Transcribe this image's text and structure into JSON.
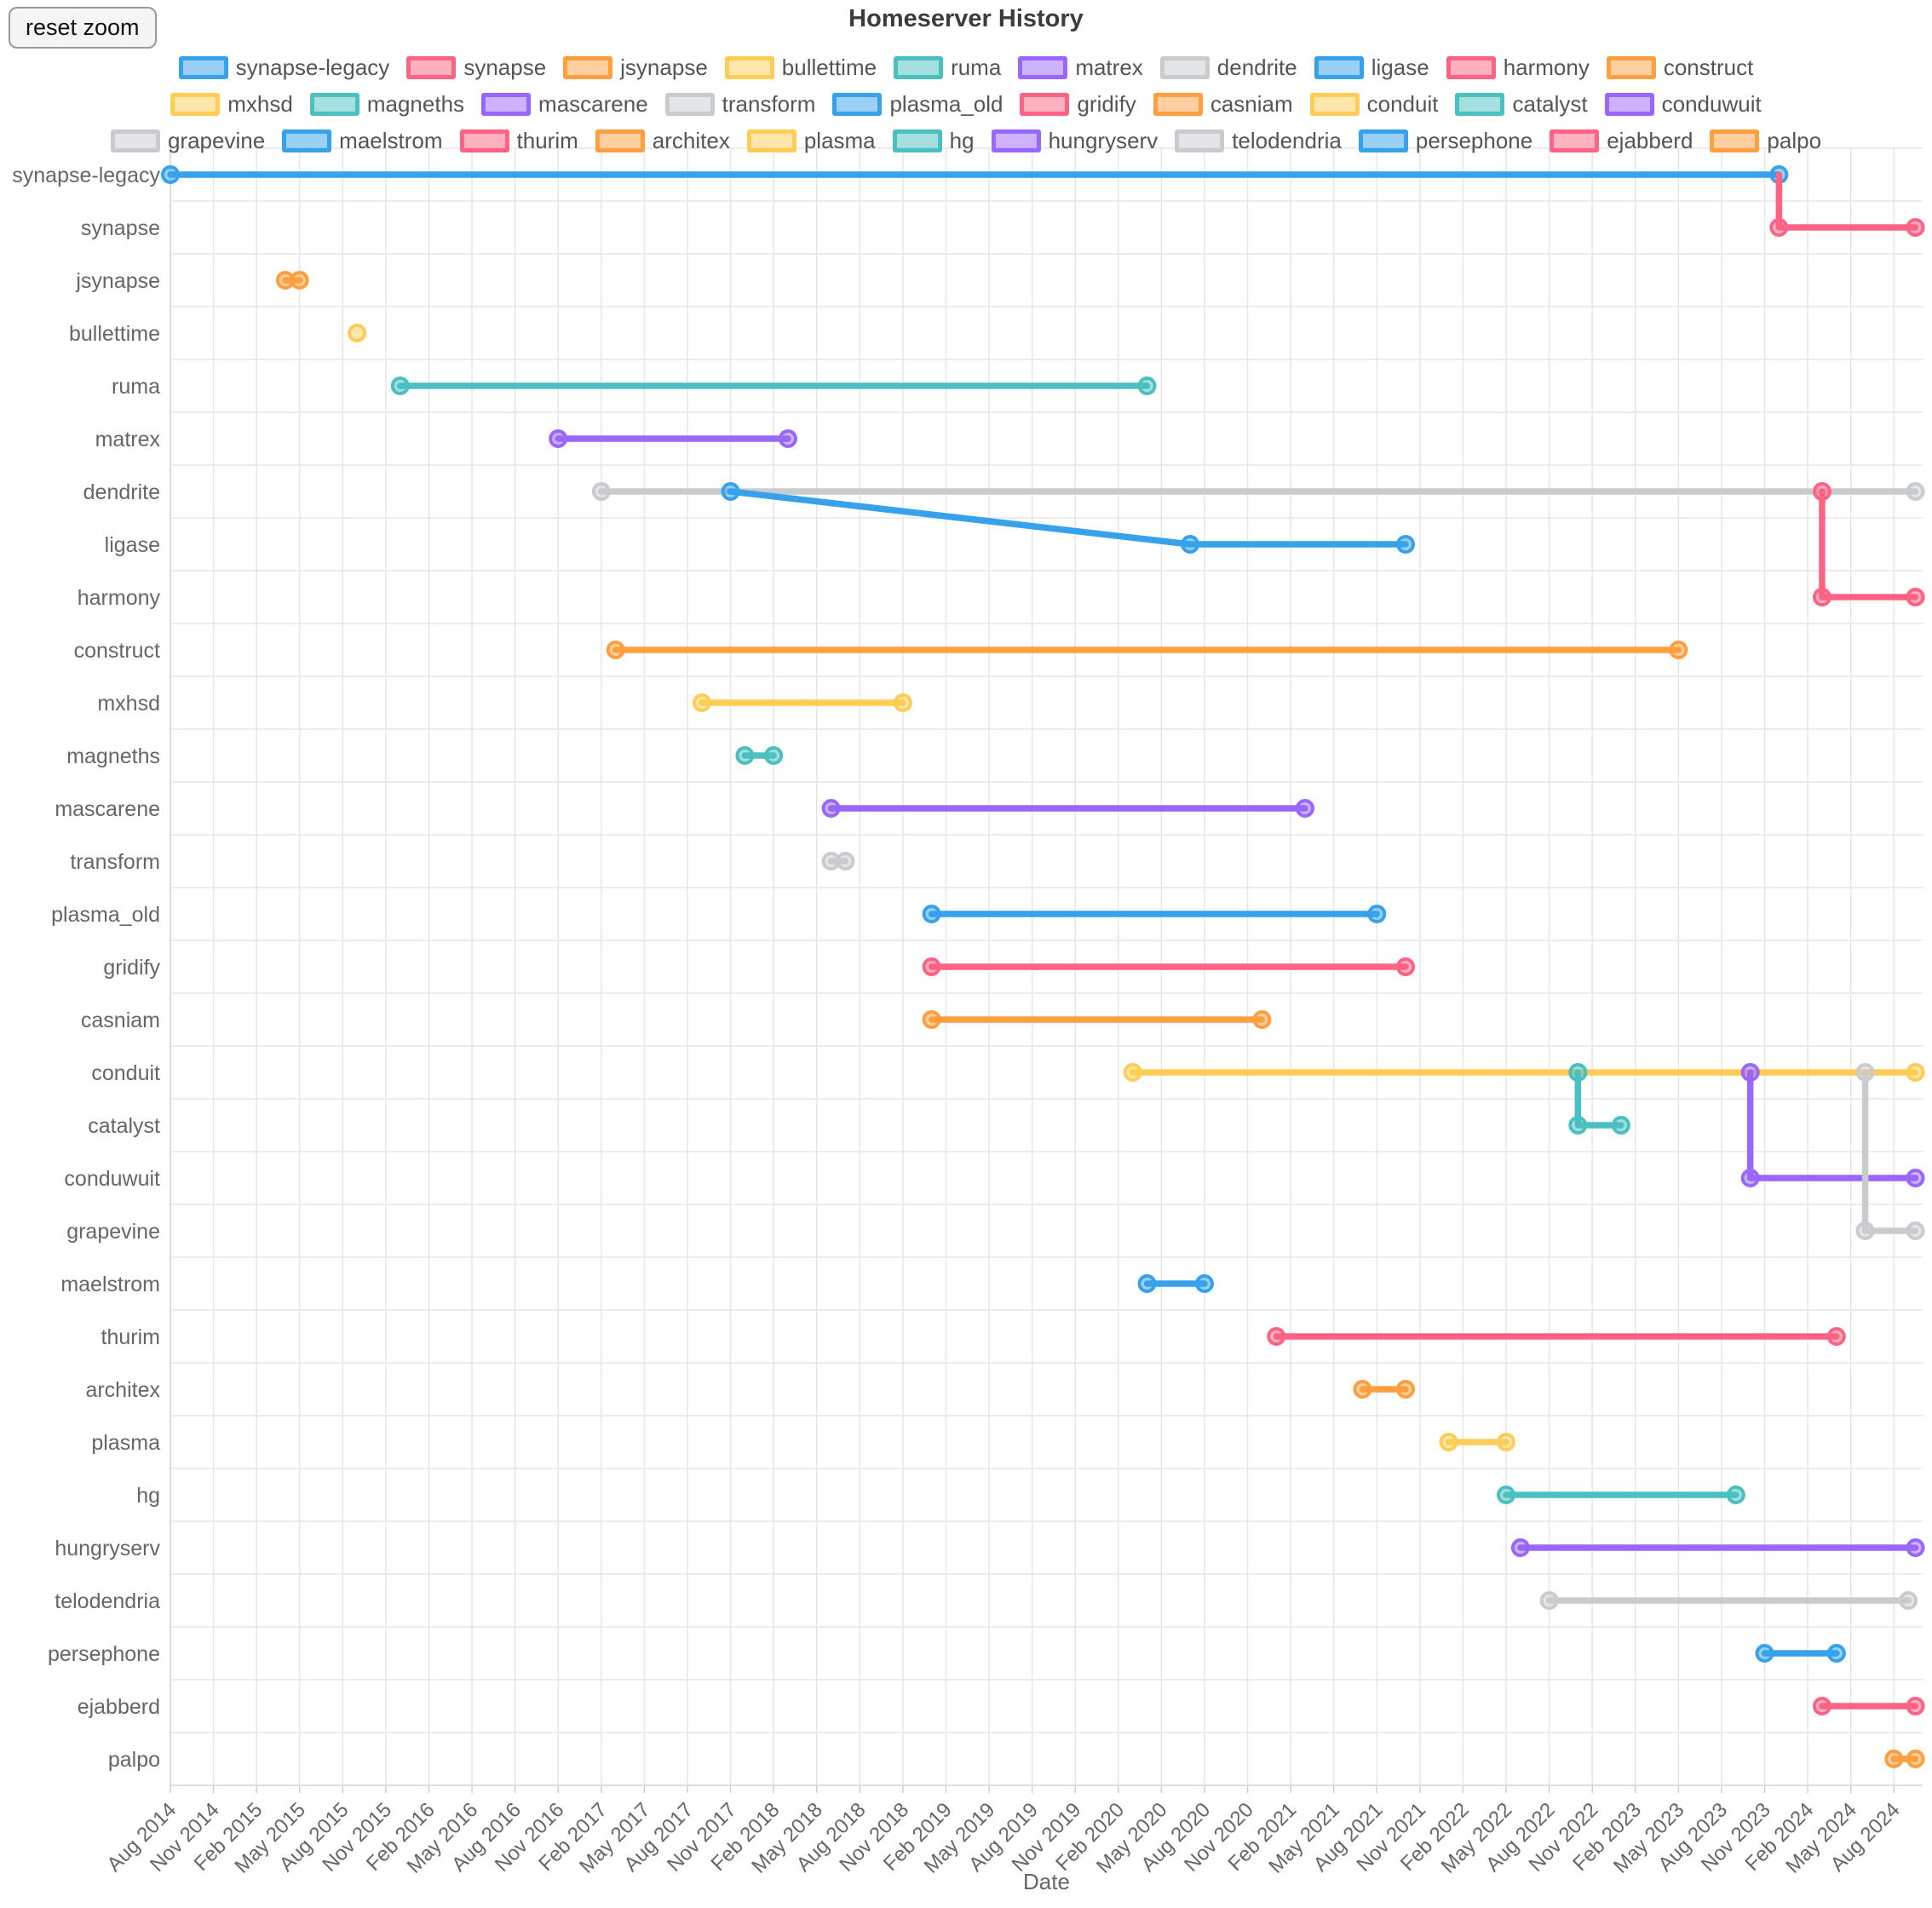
{
  "toolbar": {
    "reset_zoom_label": "reset zoom"
  },
  "chart_data": {
    "type": "line",
    "title": "Homeserver History",
    "xlabel": "Date",
    "x_axis": {
      "start": "2014-08",
      "end": "2024-10",
      "now": "2024-09",
      "tick_interval_months": 3,
      "ticks": [
        "Aug 2014",
        "Nov 2014",
        "Feb 2015",
        "May 2015",
        "Aug 2015",
        "Nov 2015",
        "Feb 2016",
        "May 2016",
        "Aug 2016",
        "Nov 2016",
        "Feb 2017",
        "May 2017",
        "Aug 2017",
        "Nov 2017",
        "Feb 2018",
        "May 2018",
        "Aug 2018",
        "Nov 2018",
        "Feb 2019",
        "May 2019",
        "Aug 2019",
        "Nov 2019",
        "Feb 2020",
        "May 2020",
        "Aug 2020",
        "Nov 2020",
        "Feb 2021",
        "May 2021",
        "Aug 2021",
        "Nov 2021",
        "Feb 2022",
        "May 2022",
        "Aug 2022",
        "Nov 2022",
        "Feb 2023",
        "May 2023",
        "Aug 2023",
        "Nov 2023",
        "Feb 2024",
        "May 2024",
        "Aug 2024"
      ]
    },
    "y_categories": [
      "synapse-legacy",
      "synapse",
      "jsynapse",
      "bullettime",
      "ruma",
      "matrex",
      "dendrite",
      "ligase",
      "harmony",
      "construct",
      "mxhsd",
      "magneths",
      "mascarene",
      "transform",
      "plasma_old",
      "gridify",
      "casniam",
      "conduit",
      "catalyst",
      "conduwuit",
      "grapevine",
      "maelstrom",
      "thurim",
      "architex",
      "plasma",
      "hg",
      "hungryserv",
      "telodendria",
      "persephone",
      "ejabberd",
      "palpo"
    ],
    "palette": {
      "blue": {
        "stroke": "#36a2eb",
        "fill": "rgba(54,162,235,0.5)"
      },
      "pink": {
        "stroke": "#ff6384",
        "fill": "rgba(255,99,132,0.5)"
      },
      "orange": {
        "stroke": "#ff9f40",
        "fill": "rgba(255,159,64,0.5)"
      },
      "yellow": {
        "stroke": "#ffcd56",
        "fill": "rgba(255,205,86,0.5)"
      },
      "teal": {
        "stroke": "#4bc0c0",
        "fill": "rgba(75,192,192,0.5)"
      },
      "purple": {
        "stroke": "#9966ff",
        "fill": "rgba(153,102,255,0.5)"
      },
      "gray": {
        "stroke": "#c9cbcf",
        "fill": "rgba(201,203,207,0.5)"
      }
    },
    "legend_row_breaks": [
      10,
      20
    ],
    "series": [
      {
        "name": "synapse-legacy",
        "color": "blue",
        "points": [
          {
            "date": "2014-08",
            "row": "synapse-legacy"
          },
          {
            "date": "2023-12",
            "row": "synapse-legacy"
          }
        ]
      },
      {
        "name": "synapse",
        "color": "pink",
        "points": [
          {
            "date": "2023-12",
            "row": "synapse-legacy",
            "marker": false
          },
          {
            "date": "2023-12",
            "row": "synapse"
          },
          {
            "date": "now",
            "row": "synapse"
          }
        ]
      },
      {
        "name": "jsynapse",
        "color": "orange",
        "points": [
          {
            "date": "2015-04",
            "row": "jsynapse"
          },
          {
            "date": "2015-05",
            "row": "jsynapse"
          }
        ]
      },
      {
        "name": "bullettime",
        "color": "yellow",
        "points": [
          {
            "date": "2015-09",
            "row": "bullettime"
          }
        ]
      },
      {
        "name": "ruma",
        "color": "teal",
        "points": [
          {
            "date": "2015-12",
            "row": "ruma"
          },
          {
            "date": "2020-04",
            "row": "ruma"
          }
        ]
      },
      {
        "name": "matrex",
        "color": "purple",
        "points": [
          {
            "date": "2016-11",
            "row": "matrex"
          },
          {
            "date": "2018-03",
            "row": "matrex"
          }
        ]
      },
      {
        "name": "dendrite",
        "color": "gray",
        "points": [
          {
            "date": "2017-02",
            "row": "dendrite"
          },
          {
            "date": "now",
            "row": "dendrite"
          }
        ]
      },
      {
        "name": "ligase",
        "color": "blue",
        "points": [
          {
            "date": "2017-11",
            "row": "dendrite"
          },
          {
            "date": "2020-07",
            "row": "ligase"
          },
          {
            "date": "2021-10",
            "row": "ligase"
          }
        ]
      },
      {
        "name": "harmony",
        "color": "pink",
        "points": [
          {
            "date": "2024-03",
            "row": "dendrite"
          },
          {
            "date": "2024-03",
            "row": "harmony"
          },
          {
            "date": "now",
            "row": "harmony"
          }
        ]
      },
      {
        "name": "construct",
        "color": "orange",
        "points": [
          {
            "date": "2017-03",
            "row": "construct"
          },
          {
            "date": "2023-05",
            "row": "construct"
          }
        ]
      },
      {
        "name": "mxhsd",
        "color": "yellow",
        "points": [
          {
            "date": "2017-09",
            "row": "mxhsd"
          },
          {
            "date": "2018-11",
            "row": "mxhsd"
          }
        ]
      },
      {
        "name": "magneths",
        "color": "teal",
        "points": [
          {
            "date": "2017-12",
            "row": "magneths"
          },
          {
            "date": "2018-02",
            "row": "magneths"
          }
        ]
      },
      {
        "name": "mascarene",
        "color": "purple",
        "points": [
          {
            "date": "2018-06",
            "row": "mascarene"
          },
          {
            "date": "2021-03",
            "row": "mascarene"
          }
        ]
      },
      {
        "name": "transform",
        "color": "gray",
        "points": [
          {
            "date": "2018-06",
            "row": "transform"
          },
          {
            "date": "2018-07",
            "row": "transform"
          }
        ]
      },
      {
        "name": "plasma_old",
        "color": "blue",
        "points": [
          {
            "date": "2019-01",
            "row": "plasma_old"
          },
          {
            "date": "2021-08",
            "row": "plasma_old"
          }
        ]
      },
      {
        "name": "gridify",
        "color": "pink",
        "points": [
          {
            "date": "2019-01",
            "row": "gridify"
          },
          {
            "date": "2021-10",
            "row": "gridify"
          }
        ]
      },
      {
        "name": "casniam",
        "color": "orange",
        "points": [
          {
            "date": "2019-01",
            "row": "casniam"
          },
          {
            "date": "2020-12",
            "row": "casniam"
          }
        ]
      },
      {
        "name": "conduit",
        "color": "yellow",
        "points": [
          {
            "date": "2020-03",
            "row": "conduit"
          },
          {
            "date": "now",
            "row": "conduit"
          }
        ]
      },
      {
        "name": "catalyst",
        "color": "teal",
        "points": [
          {
            "date": "2022-10",
            "row": "conduit"
          },
          {
            "date": "2022-10",
            "row": "catalyst"
          },
          {
            "date": "2023-01",
            "row": "catalyst"
          }
        ]
      },
      {
        "name": "conduwuit",
        "color": "purple",
        "points": [
          {
            "date": "2023-10",
            "row": "conduit"
          },
          {
            "date": "2023-10",
            "row": "conduwuit"
          },
          {
            "date": "now",
            "row": "conduwuit"
          }
        ]
      },
      {
        "name": "grapevine",
        "color": "gray",
        "points": [
          {
            "date": "2024-06",
            "row": "conduit"
          },
          {
            "date": "2024-06",
            "row": "grapevine"
          },
          {
            "date": "now",
            "row": "grapevine"
          }
        ]
      },
      {
        "name": "maelstrom",
        "color": "blue",
        "points": [
          {
            "date": "2020-04",
            "row": "maelstrom"
          },
          {
            "date": "2020-08",
            "row": "maelstrom"
          }
        ]
      },
      {
        "name": "thurim",
        "color": "pink",
        "points": [
          {
            "date": "2021-01",
            "row": "thurim"
          },
          {
            "date": "2024-04",
            "row": "thurim"
          }
        ]
      },
      {
        "name": "architex",
        "color": "orange",
        "points": [
          {
            "date": "2021-07",
            "row": "architex"
          },
          {
            "date": "2021-10",
            "row": "architex"
          }
        ]
      },
      {
        "name": "plasma",
        "color": "yellow",
        "points": [
          {
            "date": "2022-01",
            "row": "plasma"
          },
          {
            "date": "2022-05",
            "row": "plasma"
          }
        ]
      },
      {
        "name": "hg",
        "color": "teal",
        "points": [
          {
            "date": "2022-05",
            "row": "hg"
          },
          {
            "date": "2023-09",
            "row": "hg"
          }
        ]
      },
      {
        "name": "hungryserv",
        "color": "purple",
        "points": [
          {
            "date": "2022-06",
            "row": "hungryserv"
          },
          {
            "date": "now",
            "row": "hungryserv"
          }
        ]
      },
      {
        "name": "telodendria",
        "color": "gray",
        "points": [
          {
            "date": "2022-08",
            "row": "telodendria"
          },
          {
            "date": "2024-09",
            "row": "telodendria"
          }
        ]
      },
      {
        "name": "persephone",
        "color": "blue",
        "points": [
          {
            "date": "2023-11",
            "row": "persephone"
          },
          {
            "date": "2024-04",
            "row": "persephone"
          }
        ]
      },
      {
        "name": "ejabberd",
        "color": "pink",
        "points": [
          {
            "date": "2024-03",
            "row": "ejabberd"
          },
          {
            "date": "now",
            "row": "ejabberd"
          }
        ]
      },
      {
        "name": "palpo",
        "color": "orange",
        "points": [
          {
            "date": "2024-08",
            "row": "palpo"
          },
          {
            "date": "now",
            "row": "palpo"
          }
        ]
      }
    ]
  }
}
